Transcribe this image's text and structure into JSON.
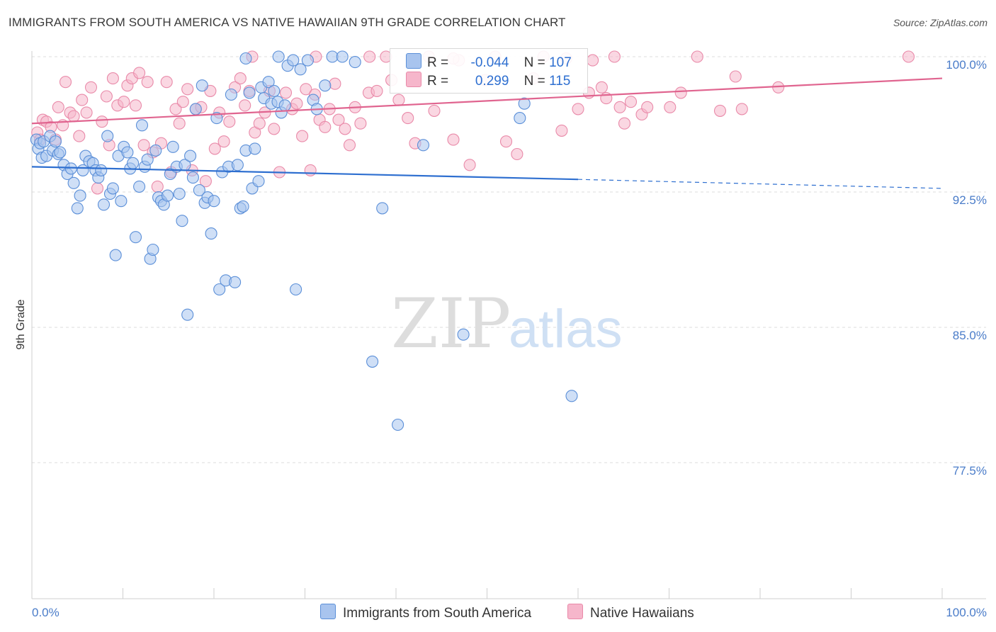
{
  "header": {
    "title": "IMMIGRANTS FROM SOUTH AMERICA VS NATIVE HAWAIIAN 9TH GRADE CORRELATION CHART",
    "source": "Source: ZipAtlas.com"
  },
  "watermark": {
    "zip": "ZIP",
    "atlas": "atlas"
  },
  "legend": {
    "rows": [
      {
        "r_label": "R =",
        "r_value": "-0.044",
        "n_label": "N =",
        "n_value": "107",
        "color": "#a8c4ee"
      },
      {
        "r_label": "R =",
        "r_value": "0.299",
        "n_label": "N =",
        "n_value": "115",
        "color": "#f6b6cb"
      }
    ]
  },
  "bottom_legend": {
    "items": [
      {
        "label": "Immigrants from South America",
        "color": "#a8c4ee"
      },
      {
        "label": "Native Hawaiians",
        "color": "#f6b6cb"
      }
    ]
  },
  "colors": {
    "blue_fill": "#a8c4ee",
    "blue_stroke": "#5b8fd8",
    "blue_line": "#2e6fd0",
    "pink_fill": "#f6b6cb",
    "pink_stroke": "#e98aa9",
    "pink_line": "#e0648f",
    "grid": "#dcdcdc",
    "tick_text": "#4a7cc9"
  },
  "chart_data": {
    "type": "scatter",
    "title": "IMMIGRANTS FROM SOUTH AMERICA VS NATIVE HAWAIIAN 9TH GRADE CORRELATION CHART",
    "xlabel": "",
    "ylabel": "9th Grade",
    "xlim": [
      0,
      100
    ],
    "ylim": [
      70.0,
      101.0
    ],
    "x_tick_labels": [
      "0.0%",
      "100.0%"
    ],
    "y_ticks": [
      77.5,
      85.0,
      92.5,
      100.0
    ],
    "y_tick_labels": [
      "77.5%",
      "85.0%",
      "92.5%",
      "100.0%"
    ],
    "grid": true,
    "legend_placement": "top-center",
    "series": [
      {
        "name": "Immigrants from South America",
        "R": -0.044,
        "N": 107,
        "trend": {
          "x0": 0,
          "y0": 93.9,
          "x1": 60,
          "y1": 93.2,
          "dash_to_x": 100,
          "dash_to_y": 92.7
        },
        "points": [
          [
            0.5,
            95.4
          ],
          [
            0.7,
            94.9
          ],
          [
            0.9,
            95.2
          ],
          [
            1.1,
            94.4
          ],
          [
            1.3,
            95.3
          ],
          [
            1.6,
            94.5
          ],
          [
            2.0,
            95.6
          ],
          [
            2.3,
            94.8
          ],
          [
            2.6,
            95.3
          ],
          [
            2.9,
            94.6
          ],
          [
            3.1,
            94.7
          ],
          [
            3.5,
            94.0
          ],
          [
            3.9,
            93.5
          ],
          [
            4.3,
            93.8
          ],
          [
            4.6,
            93.0
          ],
          [
            5.0,
            91.6
          ],
          [
            5.3,
            92.3
          ],
          [
            5.6,
            93.7
          ],
          [
            5.9,
            94.5
          ],
          [
            6.3,
            94.2
          ],
          [
            6.7,
            94.1
          ],
          [
            7.0,
            93.7
          ],
          [
            7.3,
            93.3
          ],
          [
            7.6,
            93.7
          ],
          [
            7.9,
            91.8
          ],
          [
            8.3,
            95.6
          ],
          [
            8.6,
            92.4
          ],
          [
            8.9,
            92.7
          ],
          [
            9.2,
            89.0
          ],
          [
            9.5,
            94.5
          ],
          [
            9.8,
            92.0
          ],
          [
            10.1,
            95.0
          ],
          [
            10.5,
            94.7
          ],
          [
            10.8,
            93.8
          ],
          [
            11.1,
            94.1
          ],
          [
            11.4,
            90.0
          ],
          [
            11.8,
            92.8
          ],
          [
            12.1,
            96.2
          ],
          [
            12.4,
            93.9
          ],
          [
            12.7,
            94.3
          ],
          [
            13.0,
            88.8
          ],
          [
            13.3,
            89.3
          ],
          [
            13.6,
            94.8
          ],
          [
            13.9,
            92.2
          ],
          [
            14.2,
            92.0
          ],
          [
            14.5,
            91.8
          ],
          [
            14.9,
            92.3
          ],
          [
            15.2,
            93.5
          ],
          [
            15.5,
            95.0
          ],
          [
            15.9,
            93.9
          ],
          [
            16.2,
            92.4
          ],
          [
            16.5,
            90.9
          ],
          [
            16.8,
            94.0
          ],
          [
            17.1,
            85.7
          ],
          [
            17.4,
            94.5
          ],
          [
            17.7,
            93.3
          ],
          [
            18.0,
            97.1
          ],
          [
            18.4,
            92.6
          ],
          [
            18.7,
            98.4
          ],
          [
            19.0,
            91.9
          ],
          [
            19.3,
            92.2
          ],
          [
            19.7,
            90.2
          ],
          [
            20.0,
            92.0
          ],
          [
            20.3,
            96.6
          ],
          [
            20.6,
            87.1
          ],
          [
            20.9,
            93.6
          ],
          [
            21.3,
            87.6
          ],
          [
            21.6,
            93.9
          ],
          [
            21.9,
            97.9
          ],
          [
            22.3,
            87.5
          ],
          [
            22.6,
            94.0
          ],
          [
            22.9,
            91.6
          ],
          [
            23.2,
            91.7
          ],
          [
            23.5,
            94.8
          ],
          [
            23.9,
            98.0
          ],
          [
            24.2,
            92.7
          ],
          [
            24.5,
            94.9
          ],
          [
            24.9,
            93.1
          ],
          [
            25.2,
            98.3
          ],
          [
            25.5,
            97.7
          ],
          [
            26.0,
            98.6
          ],
          [
            26.3,
            97.4
          ],
          [
            26.6,
            98.1
          ],
          [
            27.0,
            97.5
          ],
          [
            27.4,
            96.9
          ],
          [
            27.8,
            97.3
          ],
          [
            28.1,
            99.5
          ],
          [
            28.7,
            99.8
          ],
          [
            29.0,
            87.1
          ],
          [
            29.5,
            99.3
          ],
          [
            30.3,
            99.8
          ],
          [
            30.9,
            97.6
          ],
          [
            31.3,
            97.1
          ],
          [
            32.2,
            98.4
          ],
          [
            33.0,
            100.0
          ],
          [
            34.1,
            100.0
          ],
          [
            35.5,
            99.7
          ],
          [
            37.4,
            83.1
          ],
          [
            38.5,
            91.6
          ],
          [
            40.2,
            79.6
          ],
          [
            43.0,
            95.1
          ],
          [
            47.4,
            84.6
          ],
          [
            53.6,
            96.6
          ],
          [
            54.1,
            97.4
          ],
          [
            59.3,
            81.2
          ],
          [
            23.5,
            99.9
          ],
          [
            27.1,
            100.0
          ]
        ]
      },
      {
        "name": "Native Hawaiians",
        "R": 0.299,
        "N": 115,
        "trend": {
          "x0": 0,
          "y0": 96.3,
          "x1": 100,
          "y1": 98.8
        },
        "points": [
          [
            0.6,
            95.8
          ],
          [
            0.9,
            95.4
          ],
          [
            1.2,
            96.5
          ],
          [
            1.6,
            96.4
          ],
          [
            2.1,
            96.1
          ],
          [
            2.6,
            95.4
          ],
          [
            2.9,
            97.2
          ],
          [
            3.4,
            96.2
          ],
          [
            3.7,
            98.6
          ],
          [
            4.2,
            96.9
          ],
          [
            4.6,
            96.7
          ],
          [
            5.2,
            95.6
          ],
          [
            5.5,
            97.6
          ],
          [
            6.0,
            96.9
          ],
          [
            6.5,
            98.3
          ],
          [
            7.2,
            92.7
          ],
          [
            7.7,
            96.4
          ],
          [
            8.2,
            97.8
          ],
          [
            8.5,
            95.1
          ],
          [
            8.9,
            98.8
          ],
          [
            9.4,
            97.3
          ],
          [
            10.1,
            97.5
          ],
          [
            10.5,
            98.4
          ],
          [
            11.0,
            98.8
          ],
          [
            11.4,
            97.3
          ],
          [
            11.8,
            99.1
          ],
          [
            12.3,
            95.1
          ],
          [
            12.7,
            98.6
          ],
          [
            13.3,
            94.7
          ],
          [
            13.8,
            92.8
          ],
          [
            14.2,
            95.2
          ],
          [
            14.8,
            98.6
          ],
          [
            15.3,
            93.6
          ],
          [
            15.8,
            97.1
          ],
          [
            16.2,
            96.3
          ],
          [
            16.6,
            97.5
          ],
          [
            17.1,
            98.2
          ],
          [
            17.6,
            93.7
          ],
          [
            18.0,
            97.1
          ],
          [
            18.6,
            97.2
          ],
          [
            19.1,
            93.1
          ],
          [
            19.6,
            98.1
          ],
          [
            20.1,
            94.9
          ],
          [
            20.6,
            96.9
          ],
          [
            21.1,
            95.3
          ],
          [
            21.7,
            96.4
          ],
          [
            22.3,
            98.3
          ],
          [
            22.9,
            98.8
          ],
          [
            23.4,
            97.3
          ],
          [
            23.9,
            98.1
          ],
          [
            24.5,
            95.8
          ],
          [
            25.0,
            96.3
          ],
          [
            25.6,
            96.9
          ],
          [
            26.1,
            98.1
          ],
          [
            26.6,
            96.0
          ],
          [
            27.2,
            93.6
          ],
          [
            27.9,
            98.0
          ],
          [
            28.6,
            97.1
          ],
          [
            29.1,
            97.4
          ],
          [
            29.7,
            95.6
          ],
          [
            30.1,
            98.2
          ],
          [
            30.6,
            93.7
          ],
          [
            31.1,
            97.9
          ],
          [
            31.6,
            96.5
          ],
          [
            32.2,
            96.1
          ],
          [
            32.7,
            97.1
          ],
          [
            33.3,
            98.5
          ],
          [
            33.7,
            96.5
          ],
          [
            34.4,
            96.0
          ],
          [
            34.9,
            95.1
          ],
          [
            35.5,
            97.2
          ],
          [
            36.1,
            96.3
          ],
          [
            37.0,
            98.0
          ],
          [
            37.9,
            98.1
          ],
          [
            38.9,
            100.0
          ],
          [
            39.5,
            98.7
          ],
          [
            40.3,
            97.6
          ],
          [
            41.3,
            96.6
          ],
          [
            42.1,
            95.2
          ],
          [
            43.6,
            100.0
          ],
          [
            44.2,
            97.0
          ],
          [
            46.3,
            95.4
          ],
          [
            46.9,
            99.8
          ],
          [
            48.1,
            94.0
          ],
          [
            49.8,
            98.7
          ],
          [
            50.9,
            100.0
          ],
          [
            52.1,
            95.3
          ],
          [
            53.3,
            94.6
          ],
          [
            55.1,
            98.8
          ],
          [
            56.2,
            100.0
          ],
          [
            58.2,
            95.9
          ],
          [
            60.0,
            97.1
          ],
          [
            61.2,
            98.0
          ],
          [
            61.6,
            99.8
          ],
          [
            62.6,
            98.3
          ],
          [
            63.1,
            97.7
          ],
          [
            64.0,
            100.0
          ],
          [
            64.6,
            97.2
          ],
          [
            65.1,
            96.3
          ],
          [
            65.8,
            97.5
          ],
          [
            67.0,
            96.8
          ],
          [
            67.6,
            97.2
          ],
          [
            70.1,
            97.2
          ],
          [
            71.3,
            98.0
          ],
          [
            73.1,
            100.0
          ],
          [
            75.6,
            97.0
          ],
          [
            77.3,
            98.9
          ],
          [
            78.0,
            97.1
          ],
          [
            82.0,
            98.3
          ],
          [
            96.3,
            100.0
          ],
          [
            58.7,
            99.9
          ],
          [
            46.3,
            99.9
          ],
          [
            24.2,
            100.0
          ],
          [
            31.2,
            100.0
          ],
          [
            37.1,
            100.0
          ]
        ]
      }
    ]
  }
}
